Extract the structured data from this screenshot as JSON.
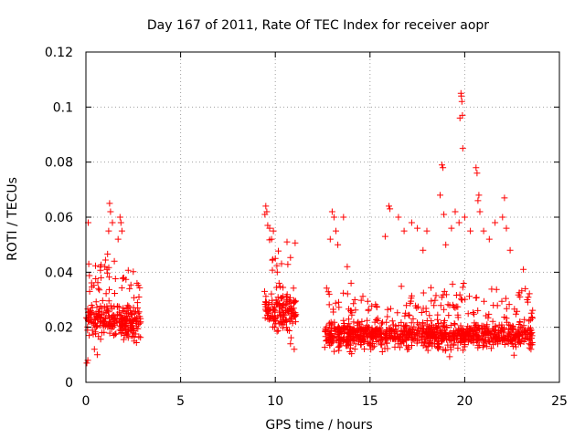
{
  "chart_data": {
    "type": "scatter",
    "title": "Day 167 of 2011, Rate Of TEC Index for receiver aopr",
    "xlabel": "GPS time / hours",
    "ylabel": "ROTI / TECUs",
    "xlim": [
      0,
      25
    ],
    "ylim": [
      0,
      0.12
    ],
    "xticks": [
      0,
      5,
      10,
      15,
      20,
      25
    ],
    "yticks": [
      0,
      0.02,
      0.04,
      0.06,
      0.08,
      0.1,
      0.12
    ],
    "xtick_labels": [
      "0",
      "5",
      "10",
      "15",
      "20",
      "25"
    ],
    "ytick_labels": [
      "0",
      "0.02",
      "0.04",
      "0.06",
      "0.08",
      "0.1",
      "0.12"
    ],
    "grid": true,
    "marker": "plus",
    "color": "#ff0000",
    "seed": 167,
    "points_per_hour": 95,
    "series": [
      {
        "name": "ROTI",
        "segments": [
          {
            "start": 0.0,
            "end": 2.9,
            "base": 0.022,
            "spread": 0.01
          },
          {
            "start": 9.4,
            "end": 11.1,
            "base": 0.026,
            "spread": 0.012
          },
          {
            "start": 12.6,
            "end": 23.6,
            "base": 0.017,
            "spread": 0.008
          }
        ],
        "points": [
          [
            0.05,
            0.007
          ],
          [
            0.1,
            0.008
          ],
          [
            0.12,
            0.058
          ],
          [
            0.15,
            0.043
          ],
          [
            0.2,
            0.033
          ],
          [
            0.3,
            0.028
          ],
          [
            0.45,
            0.012
          ],
          [
            0.6,
            0.01
          ],
          [
            0.8,
            0.038
          ],
          [
            1.0,
            0.042
          ],
          [
            1.2,
            0.055
          ],
          [
            1.25,
            0.065
          ],
          [
            1.3,
            0.062
          ],
          [
            1.4,
            0.058
          ],
          [
            1.5,
            0.044
          ],
          [
            1.7,
            0.052
          ],
          [
            1.8,
            0.06
          ],
          [
            1.85,
            0.058
          ],
          [
            1.9,
            0.055
          ],
          [
            2.0,
            0.038
          ],
          [
            2.3,
            0.034
          ],
          [
            2.5,
            0.018
          ],
          [
            2.7,
            0.036
          ],
          [
            2.8,
            0.031
          ],
          [
            9.45,
            0.061
          ],
          [
            9.5,
            0.064
          ],
          [
            9.55,
            0.062
          ],
          [
            9.6,
            0.057
          ],
          [
            9.7,
            0.056
          ],
          [
            9.8,
            0.052
          ],
          [
            9.9,
            0.055
          ],
          [
            10.0,
            0.045
          ],
          [
            10.1,
            0.04
          ],
          [
            10.2,
            0.036
          ],
          [
            10.4,
            0.028
          ],
          [
            10.6,
            0.02
          ],
          [
            10.8,
            0.014
          ],
          [
            11.0,
            0.012
          ],
          [
            12.9,
            0.052
          ],
          [
            13.0,
            0.062
          ],
          [
            13.1,
            0.06
          ],
          [
            13.2,
            0.055
          ],
          [
            13.3,
            0.05
          ],
          [
            13.6,
            0.06
          ],
          [
            13.8,
            0.042
          ],
          [
            14.0,
            0.036
          ],
          [
            14.2,
            0.03
          ],
          [
            15.8,
            0.053
          ],
          [
            16.0,
            0.064
          ],
          [
            16.05,
            0.063
          ],
          [
            16.5,
            0.06
          ],
          [
            16.8,
            0.055
          ],
          [
            17.2,
            0.058
          ],
          [
            17.5,
            0.056
          ],
          [
            17.8,
            0.048
          ],
          [
            18.0,
            0.055
          ],
          [
            18.7,
            0.068
          ],
          [
            18.8,
            0.079
          ],
          [
            18.85,
            0.078
          ],
          [
            18.9,
            0.061
          ],
          [
            19.0,
            0.05
          ],
          [
            19.3,
            0.056
          ],
          [
            19.5,
            0.062
          ],
          [
            19.7,
            0.058
          ],
          [
            19.75,
            0.096
          ],
          [
            19.8,
            0.105
          ],
          [
            19.82,
            0.104
          ],
          [
            19.85,
            0.102
          ],
          [
            19.88,
            0.097
          ],
          [
            19.9,
            0.085
          ],
          [
            20.0,
            0.06
          ],
          [
            20.3,
            0.055
          ],
          [
            20.6,
            0.078
          ],
          [
            20.65,
            0.076
          ],
          [
            20.7,
            0.066
          ],
          [
            20.75,
            0.068
          ],
          [
            20.8,
            0.062
          ],
          [
            21.0,
            0.055
          ],
          [
            21.3,
            0.052
          ],
          [
            21.6,
            0.058
          ],
          [
            22.1,
            0.067
          ],
          [
            22.0,
            0.06
          ],
          [
            22.2,
            0.056
          ],
          [
            22.4,
            0.048
          ],
          [
            23.1,
            0.041
          ],
          [
            23.2,
            0.034
          ],
          [
            23.3,
            0.03
          ],
          [
            23.5,
            0.012
          ]
        ]
      }
    ]
  }
}
